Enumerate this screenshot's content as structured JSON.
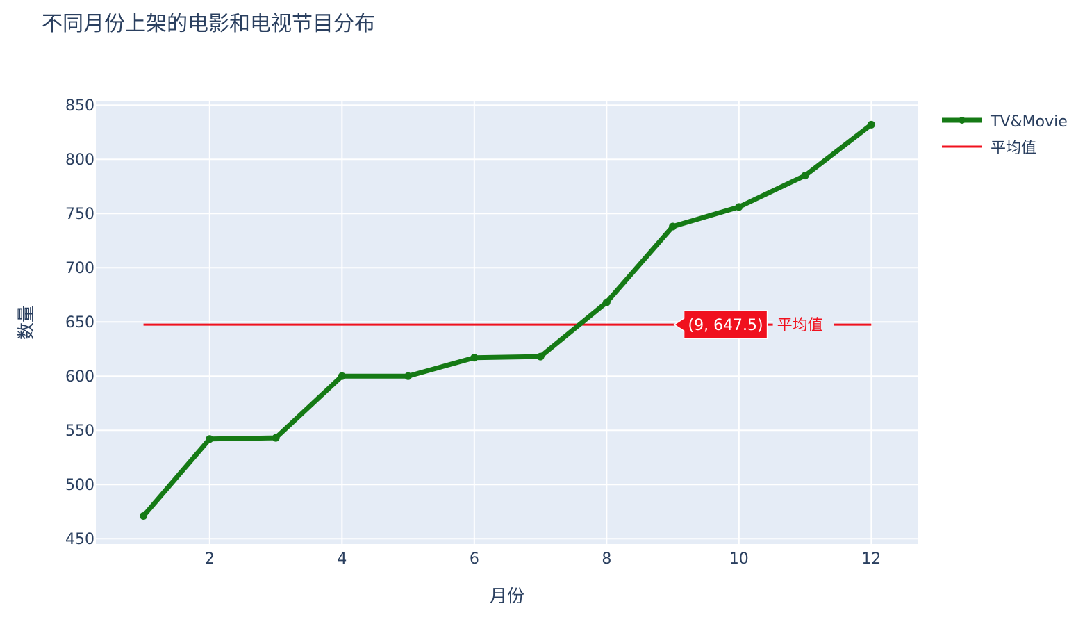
{
  "chart_data": {
    "type": "line",
    "title": "不同月份上架的电影和电视节目分布",
    "xlabel": "月份",
    "ylabel": "数量",
    "xlim": [
      0.28,
      12.7
    ],
    "ylim": [
      445,
      854
    ],
    "x_ticks": [
      2,
      4,
      6,
      8,
      10,
      12
    ],
    "y_ticks": [
      450,
      500,
      550,
      600,
      650,
      700,
      750,
      800,
      850
    ],
    "grid": true,
    "legend_position": "top-right",
    "series": [
      {
        "name": "TV&Movie",
        "color": "#157a15",
        "x": [
          1,
          2,
          3,
          4,
          5,
          6,
          7,
          8,
          9,
          10,
          11,
          12
        ],
        "y": [
          471,
          542,
          543,
          600,
          600,
          617,
          618,
          668,
          738,
          756,
          785,
          832
        ]
      },
      {
        "name": "平均值",
        "color": "#f0111e",
        "x": [
          1,
          12
        ],
        "y": [
          647.5,
          647.5
        ]
      }
    ],
    "annotations": [
      {
        "x": 9,
        "y": 647.5,
        "text": "(9, 647.5)",
        "background": "#f0111e",
        "label": "平均值"
      }
    ],
    "colors": {
      "plot_background": "#e5ecf6",
      "grid": "#ffffff",
      "text": "#2a3f5f",
      "line": "#157a15",
      "mean": "#f0111e"
    }
  }
}
